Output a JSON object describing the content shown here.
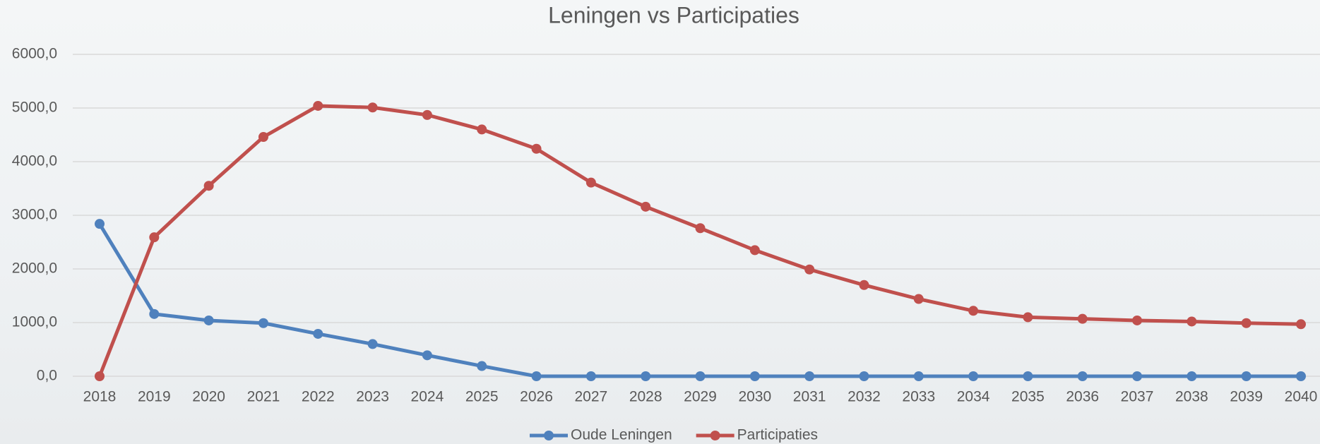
{
  "chart_data": {
    "type": "line",
    "title": "Leningen vs Participaties",
    "categories": [
      "2018",
      "2019",
      "2020",
      "2021",
      "2022",
      "2023",
      "2024",
      "2025",
      "2026",
      "2027",
      "2028",
      "2029",
      "2030",
      "2031",
      "2032",
      "2033",
      "2034",
      "2035",
      "2036",
      "2037",
      "2038",
      "2039",
      "2040"
    ],
    "series": [
      {
        "name": "Oude Leningen",
        "color": "#4f81bd",
        "values": [
          2840,
          1160,
          1040,
          990,
          790,
          600,
          390,
          190,
          0,
          0,
          0,
          0,
          0,
          0,
          0,
          0,
          0,
          0,
          0,
          0,
          0,
          0,
          0
        ]
      },
      {
        "name": "Participaties",
        "color": "#c0504d",
        "values": [
          0,
          2590,
          3550,
          4460,
          5040,
          5010,
          4870,
          4600,
          4240,
          3610,
          3160,
          2760,
          2350,
          1990,
          1700,
          1440,
          1220,
          1100,
          1070,
          1040,
          1020,
          990,
          970
        ]
      }
    ],
    "ylim": [
      0,
      6000
    ],
    "yticks": [
      {
        "value": 0,
        "label": "0,0"
      },
      {
        "value": 1000,
        "label": "1000,0"
      },
      {
        "value": 2000,
        "label": "2000,0"
      },
      {
        "value": 3000,
        "label": "3000,0"
      },
      {
        "value": 4000,
        "label": "4000,0"
      },
      {
        "value": 5000,
        "label": "5000,0"
      },
      {
        "value": 6000,
        "label": "6000,0"
      }
    ],
    "grid": true,
    "legend": "bottom"
  }
}
